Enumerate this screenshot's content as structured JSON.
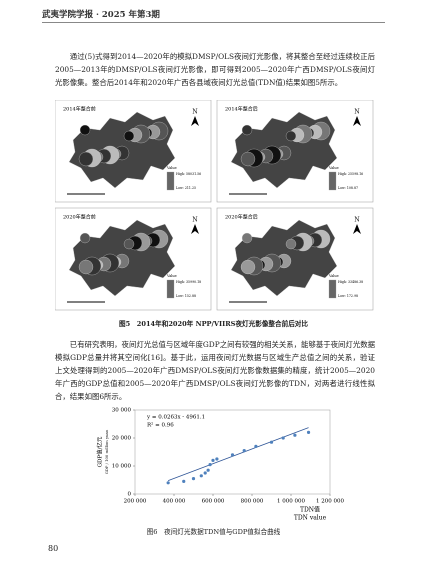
{
  "header": {
    "title": "武夷学院学报 · 2025 年第3期"
  },
  "paragraphs": [
    "通过(5)式得到2014—2020年的模拟DMSP/OLS夜间灯光影像，将其整合至经过连续校正后2005—2013年的DMSP/OLS夜间灯光影像，即可得到2005—2020年广西DMSP/OLS夜间灯光影像集。整合后2014年和2020年广西各县域夜间灯光总值(TDN值)结果如图5所示。",
    "已有研究表明，夜间灯光总值与区域年度GDP之间有较强的相关关系，能够基于夜间灯光数据模拟GDP总量并将其空间化[16]。基于此，运用夜间灯光数据与区域生产总值之间的关系，验证上文处理得到的2005—2020年广西DMSP/OLS夜间灯光影像数据集的精度，统计2005—2020年广西的GDP总值和2005—2020年广西DMSP/OLS夜间灯光影像的TDN，对两者进行线性拟合，结果如图6所示。"
  ],
  "maps": [
    {
      "label": "2014年整合前",
      "legend_title": "Value",
      "high": "High: 58031.56",
      "low": "Low: 211.25"
    },
    {
      "label": "2014年整合后",
      "legend_title": "Value",
      "high": "High: 25598.16",
      "low": "Low: 108.87"
    },
    {
      "label": "2020年整合前",
      "legend_title": "Value",
      "high": "High: 35990.18",
      "low": "Low: 152.88"
    },
    {
      "label": "2020年整合后",
      "legend_title": "Value",
      "high": "High: 33486.38",
      "low": "Low: 172.98"
    }
  ],
  "figure5_caption": "图5　2014年和2020年 NPP/VIIRS夜灯光影像整合前后对比",
  "chart_data": {
    "type": "scatter",
    "x_label": "TDN值",
    "x_label_en": "TDN value",
    "y_label": "GDP值/亿元",
    "y_label_en": "GDP / 100 million yuan",
    "x": [
      370000,
      450000,
      500000,
      540000,
      560000,
      575000,
      585000,
      600000,
      620000,
      700000,
      760000,
      820000,
      900000,
      960000,
      1020000,
      1090000
    ],
    "series": [
      {
        "name": "GDP",
        "color": "#4f81bd",
        "values": [
          4000,
          4500,
          5500,
          6500,
          7500,
          8500,
          10500,
          12000,
          12500,
          14000,
          15500,
          17000,
          18500,
          20000,
          21000,
          22000
        ]
      }
    ],
    "trendline": {
      "slope": 0.0263,
      "intercept": -4961.1,
      "color": "#2f5597",
      "equation": "y = 0.0263x - 4961.1",
      "r2": "R² = 0.96"
    },
    "xlim": [
      200000,
      1200000
    ],
    "xticks": [
      {
        "value": 200000,
        "label": "200 000"
      },
      {
        "value": 400000,
        "label": "400 000"
      },
      {
        "value": 600000,
        "label": "600 000"
      },
      {
        "value": 800000,
        "label": "800 000"
      },
      {
        "value": 1000000,
        "label": "1 000 000"
      },
      {
        "value": 1200000,
        "label": "1 200 000"
      }
    ],
    "ylim": [
      0,
      30000
    ],
    "yticks": [
      0,
      {
        "value": 10000,
        "label": "10 000"
      },
      {
        "value": 20000,
        "label": "20 000"
      },
      {
        "value": 30000,
        "label": "30 000"
      }
    ]
  },
  "figure6_caption": "图6　夜间灯光数据TDN值与GDP值拟合曲线",
  "page_number": "80"
}
